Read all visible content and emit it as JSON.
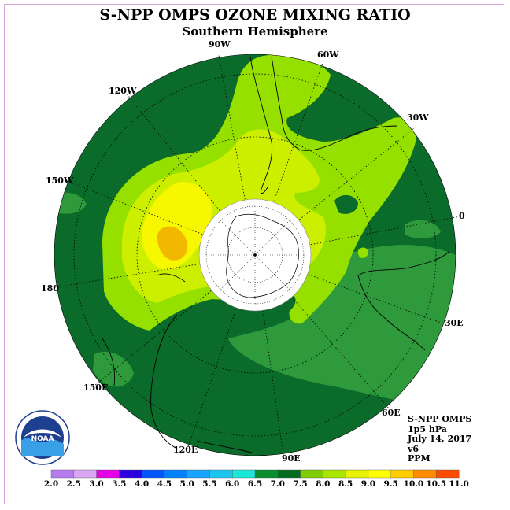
{
  "title": "S-NPP OMPS OZONE MIXING RATIO",
  "subtitle": "Southern Hemisphere",
  "longitude_labels": {
    "w90": "90W",
    "w60": "60W",
    "w30": "30W",
    "lon0": "0",
    "e30": "30E",
    "e60": "60E",
    "e90": "90E",
    "e120": "120E",
    "e150": "150E",
    "lon180": "180",
    "w150": "150W",
    "w120": "120W"
  },
  "info": {
    "product": "S-NPP OMPS",
    "level": "1p5 hPa",
    "date": "July 14, 2017",
    "version": "v6",
    "units": "PPM"
  },
  "logo": {
    "text": "NOAA"
  },
  "colorbar": {
    "ticks": [
      "2.0",
      "2.5",
      "3.0",
      "3.5",
      "4.0",
      "4.5",
      "5.0",
      "5.5",
      "6.0",
      "6.5",
      "7.0",
      "7.5",
      "8.0",
      "8.5",
      "9.0",
      "9.5",
      "10.0",
      "10.5",
      "11.0"
    ],
    "colors": [
      "#b57bef",
      "#d9a6f2",
      "#e600e6",
      "#2a00e0",
      "#0055ff",
      "#0080ff",
      "#1aa3ff",
      "#1ac6ee",
      "#1ae6d9",
      "#0a8f2e",
      "#056b22",
      "#7fcc00",
      "#a8e600",
      "#e6f200",
      "#ffff00",
      "#ffcc00",
      "#ff8c00",
      "#ff4d00",
      "#e60000",
      "#8b5a3c"
    ]
  },
  "palette": {
    "dark_green": "#0b6b2a",
    "mid_green": "#2e9a3c",
    "light_green": "#96e000",
    "yellow_green": "#ccef00",
    "yellow": "#f7f700",
    "orange": "#f2b800"
  }
}
